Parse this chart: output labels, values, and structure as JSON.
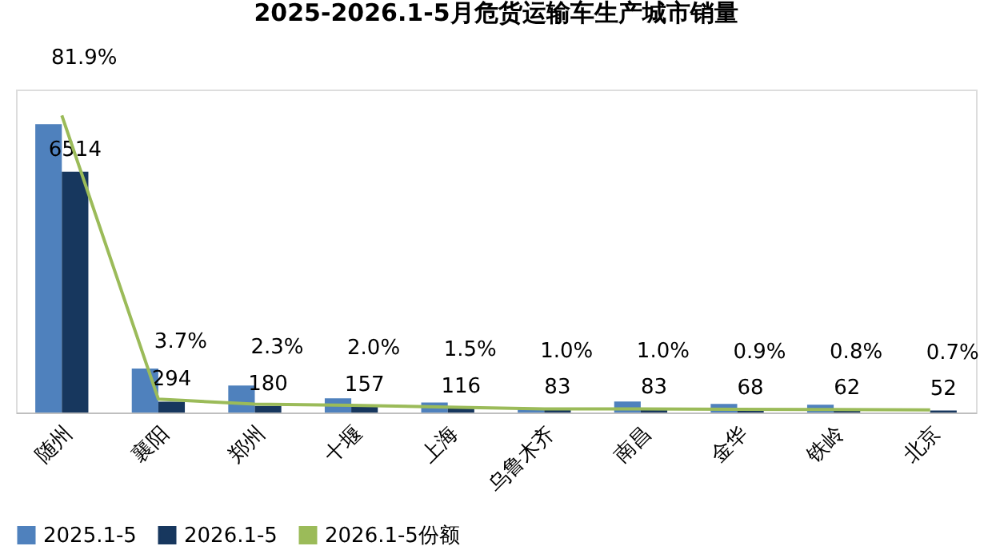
{
  "chart_data": {
    "type": "bar",
    "title": "2025-2026.1-5月危货运输车生产城市销量",
    "categories": [
      "随州",
      "襄阳",
      "郑州",
      "十堰",
      "上海",
      "乌鲁木齐",
      "南昌",
      "金华",
      "铁岭",
      "北京"
    ],
    "series": [
      {
        "name": "2025.1-5",
        "color": "#4f81bd",
        "values": [
          7800,
          1190,
          730,
          385,
          270,
          100,
          300,
          230,
          210,
          null
        ]
      },
      {
        "name": "2026.1-5",
        "color": "#17375e",
        "values": [
          6514,
          294,
          180,
          157,
          116,
          83,
          83,
          68,
          62,
          52
        ],
        "value_labels": [
          "6514",
          "294",
          "180",
          "157",
          "116",
          "83",
          "83",
          "68",
          "62",
          "52"
        ]
      },
      {
        "name": "2026.1-5份额",
        "type": "line",
        "axis": "y2",
        "color": "#9bbb59",
        "values": [
          81.9,
          3.7,
          2.3,
          2.0,
          1.5,
          1.0,
          1.0,
          0.9,
          0.8,
          0.7
        ],
        "value_labels": [
          "81.9%",
          "3.7%",
          "2.3%",
          "2.0%",
          "1.5%",
          "1.0%",
          "1.0%",
          "0.9%",
          "0.8%",
          "0.7%"
        ]
      }
    ],
    "legend": "bottom",
    "tick_labels": "x",
    "grid": false,
    "marker": "none"
  }
}
